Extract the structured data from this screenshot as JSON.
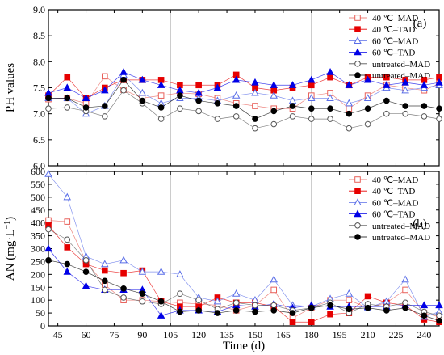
{
  "chart_data": [
    {
      "type": "line",
      "panel_label": "(a)",
      "ylabel": "PH values",
      "ylim": [
        6.0,
        9.0
      ],
      "yticks": [
        "6.0",
        "6.5",
        "7.0",
        "7.5",
        "8.0",
        "8.5",
        "9.0"
      ],
      "xlim": [
        40,
        248
      ],
      "vlines": [
        105,
        180
      ],
      "legend_position": "top-right",
      "series": [
        {
          "name": "40 ℃–MAD",
          "color": "#e8605a",
          "marker": "square-open",
          "x": [
            40,
            50,
            60,
            70,
            80,
            90,
            100,
            110,
            120,
            130,
            140,
            150,
            160,
            170,
            180,
            190,
            200,
            210,
            220,
            230,
            240,
            248
          ],
          "y": [
            7.28,
            7.3,
            7.2,
            7.72,
            7.46,
            7.3,
            7.35,
            7.4,
            7.38,
            7.3,
            7.2,
            7.15,
            7.1,
            7.1,
            7.35,
            7.4,
            7.1,
            7.35,
            7.55,
            7.5,
            7.45,
            7.58
          ]
        },
        {
          "name": "40 ℃–TAD",
          "color": "#e60000",
          "marker": "square-filled",
          "x": [
            40,
            50,
            60,
            70,
            80,
            90,
            100,
            110,
            120,
            130,
            140,
            150,
            160,
            170,
            180,
            190,
            200,
            210,
            220,
            230,
            240,
            248
          ],
          "y": [
            7.35,
            7.7,
            7.3,
            7.5,
            7.65,
            7.65,
            7.65,
            7.55,
            7.55,
            7.55,
            7.75,
            7.5,
            7.45,
            7.5,
            7.55,
            7.7,
            7.55,
            7.7,
            7.7,
            7.65,
            7.65,
            7.7
          ]
        },
        {
          "name": "60 ℃–MAD",
          "color": "#5a6ee8",
          "marker": "triangle-open",
          "x": [
            40,
            50,
            60,
            70,
            80,
            90,
            100,
            110,
            120,
            130,
            140,
            150,
            160,
            170,
            180,
            190,
            200,
            210,
            220,
            230,
            240,
            248
          ],
          "y": [
            7.3,
            7.3,
            7.0,
            7.15,
            7.75,
            7.4,
            7.2,
            7.3,
            7.3,
            7.25,
            7.35,
            7.4,
            7.35,
            7.25,
            7.3,
            7.3,
            7.2,
            7.3,
            7.5,
            7.45,
            7.5,
            7.55
          ]
        },
        {
          "name": "60 ℃–TAD",
          "color": "#0000e6",
          "marker": "triangle-filled",
          "x": [
            40,
            50,
            60,
            70,
            80,
            90,
            100,
            110,
            120,
            130,
            140,
            150,
            160,
            170,
            180,
            190,
            200,
            210,
            220,
            230,
            240,
            248
          ],
          "y": [
            7.4,
            7.5,
            7.3,
            7.45,
            7.8,
            7.65,
            7.55,
            7.45,
            7.4,
            7.5,
            7.65,
            7.6,
            7.55,
            7.55,
            7.65,
            7.8,
            7.55,
            7.65,
            7.55,
            7.6,
            7.55,
            7.6
          ]
        },
        {
          "name": "untreated–MAD",
          "color": "#555555",
          "marker": "circle-open",
          "x": [
            40,
            50,
            60,
            70,
            80,
            90,
            100,
            110,
            120,
            130,
            140,
            150,
            160,
            170,
            180,
            190,
            200,
            210,
            220,
            230,
            240,
            248
          ],
          "y": [
            7.1,
            7.12,
            7.05,
            6.95,
            7.45,
            7.2,
            6.9,
            7.1,
            7.05,
            6.9,
            6.95,
            6.72,
            6.8,
            6.95,
            6.9,
            6.9,
            6.72,
            6.8,
            7.0,
            7.0,
            6.95,
            6.9
          ]
        },
        {
          "name": "untreated–MAD",
          "color": "#000000",
          "marker": "circle-filled",
          "x": [
            40,
            50,
            60,
            70,
            80,
            90,
            100,
            110,
            120,
            130,
            140,
            150,
            160,
            170,
            180,
            190,
            200,
            210,
            220,
            230,
            240,
            248
          ],
          "y": [
            7.3,
            7.3,
            7.12,
            7.15,
            7.65,
            7.25,
            7.12,
            7.35,
            7.25,
            7.2,
            7.15,
            6.9,
            7.05,
            7.15,
            7.1,
            7.1,
            7.0,
            7.1,
            7.25,
            7.15,
            7.15,
            7.1
          ]
        }
      ]
    },
    {
      "type": "line",
      "panel_label": "(b)",
      "ylabel": "AN (mg·L",
      "ylabel_sup": "−1",
      "ylabel_close": ")",
      "xlabel": "Time (d)",
      "ylim": [
        0,
        600
      ],
      "yticks": [
        "0",
        "50",
        "100",
        "150",
        "200",
        "250",
        "300",
        "350",
        "400",
        "450",
        "500",
        "550",
        "600"
      ],
      "xlim": [
        40,
        248
      ],
      "xticks": [
        "45",
        "60",
        "75",
        "90",
        "105",
        "120",
        "135",
        "150",
        "165",
        "180",
        "195",
        "210",
        "225",
        "240"
      ],
      "vlines": [
        105,
        180
      ],
      "legend_position": "top-right",
      "series": [
        {
          "name": "40 ℃–MAD",
          "color": "#e8605a",
          "marker": "square-open",
          "x": [
            40,
            50,
            60,
            70,
            80,
            90,
            100,
            110,
            120,
            130,
            140,
            150,
            160,
            170,
            180,
            190,
            200,
            210,
            220,
            230,
            240,
            248
          ],
          "y": [
            410,
            405,
            250,
            160,
            100,
            100,
            95,
            90,
            85,
            80,
            60,
            80,
            140,
            30,
            70,
            100,
            100,
            70,
            90,
            140,
            50,
            35
          ]
        },
        {
          "name": "40 ℃–TAD",
          "color": "#e60000",
          "marker": "square-filled",
          "x": [
            40,
            50,
            60,
            70,
            80,
            90,
            100,
            110,
            120,
            130,
            140,
            150,
            160,
            170,
            180,
            190,
            200,
            210,
            220,
            230,
            240,
            248
          ],
          "y": [
            390,
            305,
            240,
            215,
            205,
            215,
            95,
            75,
            75,
            110,
            90,
            90,
            75,
            15,
            15,
            45,
            50,
            115,
            90,
            80,
            25,
            15
          ]
        },
        {
          "name": "60 ℃–MAD",
          "color": "#5a6ee8",
          "marker": "triangle-open",
          "x": [
            40,
            50,
            60,
            70,
            80,
            90,
            100,
            110,
            120,
            130,
            140,
            150,
            160,
            170,
            180,
            190,
            200,
            210,
            220,
            230,
            240,
            248
          ],
          "y": [
            590,
            500,
            270,
            240,
            255,
            210,
            210,
            200,
            110,
            95,
            125,
            100,
            180,
            80,
            75,
            105,
            125,
            70,
            95,
            180,
            35,
            55
          ]
        },
        {
          "name": "60 ℃–TAD",
          "color": "#0000e6",
          "marker": "triangle-filled",
          "x": [
            40,
            50,
            60,
            70,
            80,
            90,
            100,
            110,
            120,
            130,
            140,
            150,
            160,
            170,
            180,
            190,
            200,
            210,
            220,
            230,
            240,
            248
          ],
          "y": [
            300,
            210,
            155,
            140,
            140,
            140,
            40,
            60,
            60,
            55,
            80,
            75,
            85,
            70,
            80,
            75,
            75,
            75,
            75,
            80,
            80,
            80
          ]
        },
        {
          "name": "untreated–MAD",
          "color": "#555555",
          "marker": "circle-open",
          "x": [
            40,
            50,
            60,
            70,
            80,
            90,
            100,
            110,
            120,
            130,
            140,
            150,
            160,
            170,
            180,
            190,
            200,
            210,
            220,
            230,
            240,
            248
          ],
          "y": [
            375,
            335,
            255,
            140,
            110,
            95,
            85,
            125,
            100,
            65,
            90,
            80,
            80,
            60,
            70,
            90,
            50,
            85,
            75,
            90,
            55,
            40
          ]
        },
        {
          "name": "untreated–MAD",
          "color": "#000000",
          "marker": "circle-filled",
          "x": [
            40,
            50,
            60,
            70,
            80,
            90,
            100,
            110,
            120,
            130,
            140,
            150,
            160,
            170,
            180,
            190,
            200,
            210,
            220,
            230,
            240,
            248
          ],
          "y": [
            255,
            240,
            210,
            175,
            145,
            125,
            95,
            55,
            60,
            50,
            60,
            55,
            60,
            50,
            70,
            80,
            65,
            70,
            60,
            70,
            40,
            20
          ]
        }
      ]
    }
  ]
}
